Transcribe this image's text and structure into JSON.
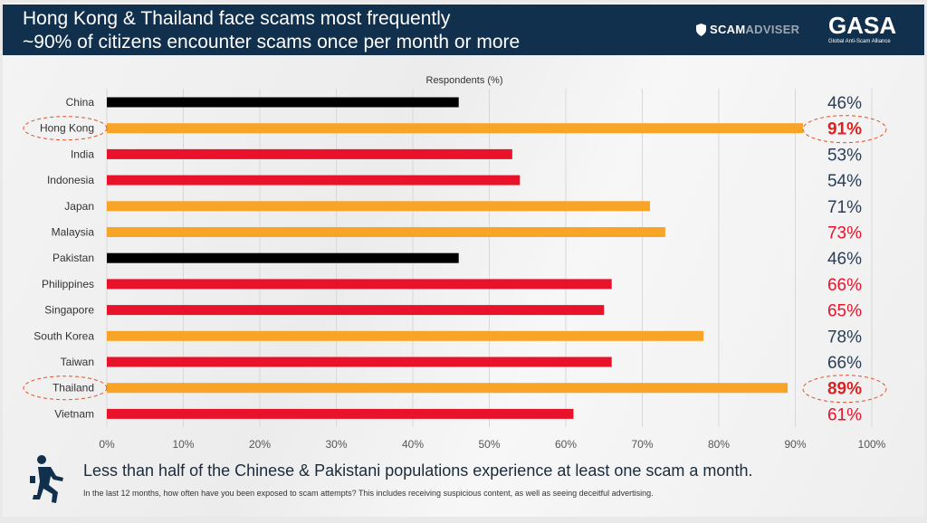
{
  "header": {
    "title_line1": "Hong Kong & Thailand face scams most frequently",
    "title_line2": "~90% of citizens encounter scams once per month or more",
    "logo_scamadviser_part1": "SCAM",
    "logo_scamadviser_part2": "ADVISER",
    "logo_gasa": "GASA",
    "logo_gasa_sub": "Global Anti-Scam Alliance"
  },
  "footer": {
    "headline": "Less than half of the Chinese & Pakistani populations experience at least one scam a month.",
    "note": "In the last 12 months, how often have you been exposed to scam attempts? This includes receiving suspicious content, as well as seeing deceitful advertising.",
    "icon": "running-person-icon"
  },
  "colors": {
    "black": "#000000",
    "orange": "#F7A427",
    "red": "#E8132B",
    "navy": "#2c3e55",
    "highlight": "#e02020"
  },
  "chart_data": {
    "type": "bar",
    "orientation": "horizontal",
    "xlabel": "Respondents (%)",
    "xlim": [
      0,
      100
    ],
    "ticks": [
      "0%",
      "10%",
      "20%",
      "30%",
      "40%",
      "50%",
      "60%",
      "70%",
      "80%",
      "90%",
      "100%"
    ],
    "grid": true,
    "categories": [
      "China",
      "Hong Kong",
      "India",
      "Indonesia",
      "Japan",
      "Malaysia",
      "Pakistan",
      "Philippines",
      "Singapore",
      "South Korea",
      "Taiwan",
      "Thailand",
      "Vietnam"
    ],
    "values": [
      46,
      91,
      53,
      54,
      71,
      73,
      46,
      66,
      65,
      78,
      66,
      89,
      61
    ],
    "bar_colors": [
      "black",
      "orange",
      "red",
      "red",
      "orange",
      "orange",
      "black",
      "red",
      "red",
      "orange",
      "red",
      "orange",
      "red"
    ],
    "labels": [
      "46%",
      "91%",
      "53%",
      "54%",
      "71%",
      "73%",
      "46%",
      "66%",
      "65%",
      "78%",
      "66%",
      "89%",
      "61%"
    ],
    "label_colors": [
      "navy",
      "highlight",
      "navy",
      "navy",
      "navy",
      "red",
      "navy",
      "red",
      "red",
      "navy",
      "navy",
      "highlight",
      "red"
    ],
    "circled": [
      "Hong Kong",
      "Thailand"
    ]
  }
}
